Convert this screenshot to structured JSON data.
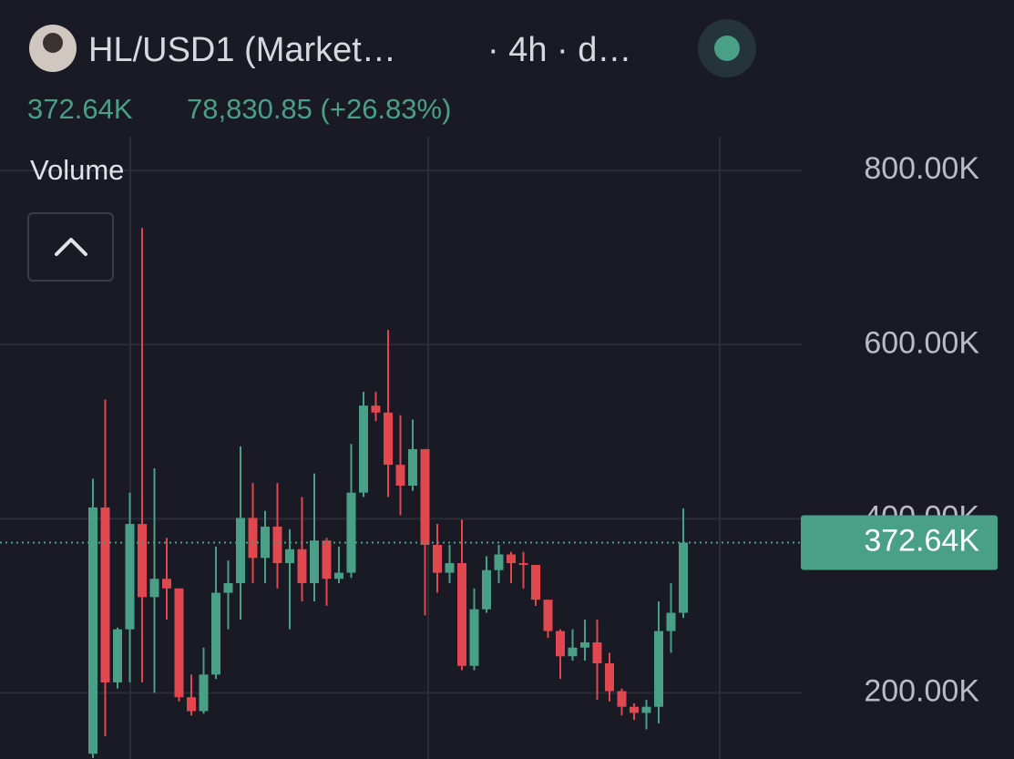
{
  "header": {
    "title": "HL/USD1 (Market…",
    "interval": "· 4h · d…",
    "volume": "372.64K",
    "price_change": "78,830.85 (+26.83%)",
    "indicator": "Volume"
  },
  "chart_data": {
    "type": "candlestick",
    "up_color": "#4a9f87",
    "down_color": "#e0474f",
    "grid": true,
    "ylim": [
      124000,
      996000
    ],
    "yticks": [
      {
        "value": 200000,
        "label": "200.00K"
      },
      {
        "value": 400000,
        "label": "400.00K"
      },
      {
        "value": 600000,
        "label": "600.00K"
      },
      {
        "value": 800000,
        "label": "800.00K"
      }
    ],
    "last_label": "372.64K",
    "open": [
      130000,
      413000,
      212000,
      273000,
      394000,
      310000,
      331000,
      320000,
      195000,
      179000,
      221000,
      315000,
      326000,
      401000,
      355000,
      391000,
      349000,
      365000,
      326000,
      375000,
      331000,
      338000,
      430000,
      530000,
      522000,
      462000,
      438000,
      480000,
      370000,
      338000,
      349000,
      231000,
      296000,
      341000,
      359000,
      349000,
      347000,
      307000,
      271000,
      242000,
      252000,
      258000,
      234000,
      202000,
      184000,
      177000,
      184000,
      271000,
      292000
    ],
    "high": [
      446000,
      537000,
      275000,
      430000,
      734000,
      458000,
      378000,
      320000,
      221000,
      252000,
      368000,
      352000,
      483000,
      441000,
      409000,
      441000,
      388000,
      425000,
      452000,
      378000,
      368000,
      486000,
      546000,
      546000,
      617000,
      519000,
      514000,
      480000,
      394000,
      370000,
      399000,
      320000,
      357000,
      370000,
      362000,
      362000,
      347000,
      307000,
      273000,
      273000,
      284000,
      284000,
      246000,
      205000,
      188000,
      192000,
      305000,
      326000,
      412000
    ],
    "low": [
      125000,
      150000,
      205000,
      212000,
      212000,
      200000,
      284000,
      190000,
      174000,
      176000,
      216000,
      273000,
      284000,
      326000,
      326000,
      320000,
      273000,
      305000,
      305000,
      300000,
      326000,
      332000,
      425000,
      512000,
      425000,
      404000,
      432000,
      289000,
      315000,
      326000,
      226000,
      226000,
      292000,
      326000,
      326000,
      320000,
      300000,
      263000,
      216000,
      237000,
      237000,
      192000,
      190000,
      174000,
      169000,
      158000,
      165000,
      246000,
      286000
    ],
    "close": [
      413000,
      212000,
      273000,
      394000,
      310000,
      331000,
      320000,
      195000,
      179000,
      221000,
      315000,
      326000,
      401000,
      355000,
      391000,
      349000,
      365000,
      326000,
      375000,
      331000,
      338000,
      430000,
      530000,
      522000,
      462000,
      438000,
      480000,
      370000,
      338000,
      349000,
      231000,
      296000,
      341000,
      359000,
      349000,
      347000,
      307000,
      271000,
      242000,
      252000,
      258000,
      234000,
      202000,
      184000,
      177000,
      184000,
      271000,
      292000,
      372640
    ]
  }
}
